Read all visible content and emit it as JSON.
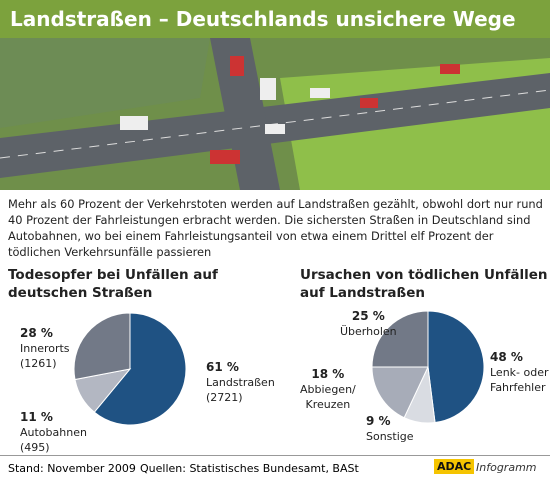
{
  "header": {
    "title": "Landstraßen – Deutschlands unsichere Wege"
  },
  "intro": "Mehr als 60 Prozent der Verkehrstoten werden auf Landstraßen gezählt, obwohl dort nur rund 40 Prozent der Fahrleistungen erbracht werden. Die sichersten Straßen in Deutschland sind Autobahnen, wo bei einem Fahrleistungsanteil von etwa einem Drittel elf Prozent der tödlichen Verkehrsunfälle passieren",
  "chart_data": [
    {
      "type": "pie",
      "title": "Todesopfer bei Unfällen auf\ndeutschen Straßen",
      "categories": [
        "Landstraßen",
        "Autobahnen",
        "Innerorts"
      ],
      "values": [
        61,
        11,
        28
      ],
      "value_labels": [
        "61 %",
        "11 %",
        "28 %"
      ],
      "count_labels": [
        "(2721)",
        "(495)",
        "(1261)"
      ],
      "colors": [
        "#1f5283",
        "#b3b7c2",
        "#727987"
      ]
    },
    {
      "type": "pie",
      "title": "Ursachen von tödlichen Unfällen\nauf Landstraßen",
      "categories": [
        "Lenk- oder\nFahrfehler",
        "Sonstige",
        "Abbiegen/\nKreuzen",
        "Überholen"
      ],
      "values": [
        48,
        9,
        18,
        25
      ],
      "value_labels": [
        "48 %",
        "9 %",
        "18 %",
        "25 %"
      ],
      "colors": [
        "#1f5283",
        "#d9dce2",
        "#a7acb8",
        "#727987"
      ]
    }
  ],
  "footer": {
    "stand": "Stand: November 2009",
    "sources": "Quellen: Statistisches Bundesamt, BASt",
    "brand": "ADAC",
    "brand_suffix": "Infogramm"
  }
}
